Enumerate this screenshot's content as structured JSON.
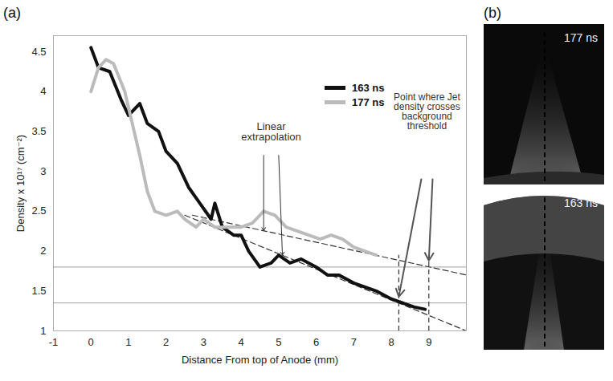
{
  "chart_data": {
    "type": "line",
    "xlabel": "Distance From top of Anode (mm)",
    "ylabel": "Density x 10¹⁷ (cm⁻²)",
    "xlim": [
      -1,
      10
    ],
    "ylim": [
      1,
      4.7
    ],
    "xticks": [
      -1,
      0,
      1,
      2,
      3,
      4,
      5,
      6,
      7,
      8,
      9
    ],
    "yticks": [
      1,
      1.5,
      2,
      2.5,
      3,
      3.5,
      4,
      4.5
    ],
    "legend": "top-right",
    "series": [
      {
        "name": "163 ns",
        "color": "#111111",
        "x": [
          0,
          0.2,
          0.5,
          0.8,
          1.0,
          1.3,
          1.5,
          1.8,
          2.0,
          2.3,
          2.6,
          2.9,
          3.2,
          3.3,
          3.5,
          3.8,
          4.0,
          4.2,
          4.5,
          4.8,
          5.0,
          5.3,
          5.6,
          6.0,
          6.3,
          6.6,
          7.0,
          7.3,
          7.6,
          8.0,
          8.3,
          8.6,
          8.9
        ],
        "values": [
          4.55,
          4.3,
          4.25,
          3.9,
          3.7,
          3.85,
          3.6,
          3.5,
          3.25,
          3.1,
          2.8,
          2.6,
          2.4,
          2.6,
          2.3,
          2.2,
          2.2,
          2.0,
          1.8,
          1.85,
          1.95,
          1.85,
          1.9,
          1.8,
          1.7,
          1.7,
          1.6,
          1.55,
          1.5,
          1.4,
          1.35,
          1.3,
          1.27
        ]
      },
      {
        "name": "177 ns",
        "color": "#bbbbbb",
        "x": [
          0,
          0.2,
          0.4,
          0.6,
          0.9,
          1.1,
          1.3,
          1.5,
          1.7,
          2.0,
          2.3,
          2.5,
          2.8,
          3.0,
          3.3,
          3.6,
          4.0,
          4.3,
          4.6,
          4.9,
          5.2,
          5.5,
          5.8,
          6.1,
          6.4,
          6.7,
          7.0,
          7.3,
          7.6
        ],
        "values": [
          4.0,
          4.3,
          4.4,
          4.35,
          4.0,
          3.6,
          3.2,
          2.75,
          2.5,
          2.45,
          2.5,
          2.4,
          2.3,
          2.4,
          2.3,
          2.3,
          2.3,
          2.35,
          2.5,
          2.45,
          2.3,
          2.25,
          2.2,
          2.15,
          2.2,
          2.15,
          2.05,
          2.0,
          1.95
        ]
      }
    ],
    "thresholds": [
      1.8,
      1.35
    ],
    "extrapolations": [
      {
        "series": "177 ns",
        "x": [
          2.7,
          10
        ],
        "values": [
          2.45,
          1.7
        ]
      },
      {
        "series": "163 ns",
        "x": [
          2.5,
          10
        ],
        "values": [
          2.45,
          1.0
        ]
      }
    ],
    "crossings": [
      {
        "series": "163 ns",
        "x": 8.2
      },
      {
        "series": "177 ns",
        "x": 9
      }
    ],
    "annotations": [
      {
        "text": "Linear extrapolation"
      },
      {
        "text": "Point where Jet density crosses background threshold"
      }
    ]
  },
  "panel_labels": [
    "(a)",
    "(b)"
  ],
  "images": [
    {
      "label": "177 ns"
    },
    {
      "label": "163 ns"
    }
  ]
}
